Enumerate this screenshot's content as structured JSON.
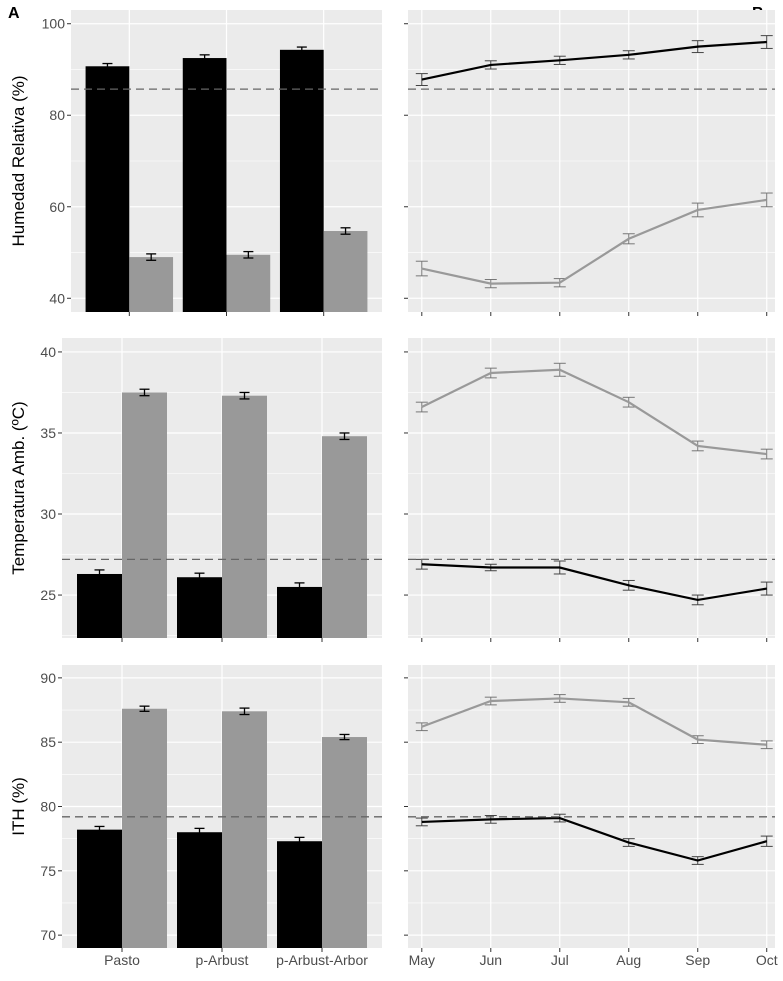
{
  "panel_labels": [
    "A",
    "B"
  ],
  "colors": {
    "black_series": "#000000",
    "gray_series": "#999999",
    "panel_bg": "#ebebeb",
    "grid": "#ffffff",
    "dashed": "#666666"
  },
  "chart_data": [
    {
      "type": "bar",
      "panel": "A",
      "row": 1,
      "ylabel": "Humedad Relativa (%)",
      "ylim": [
        37,
        103
      ],
      "yticks": [
        40,
        60,
        80,
        100
      ],
      "categories": [
        "Pasto",
        "p-Arbust",
        "p-Arbust-Arbor"
      ],
      "series": [
        {
          "name": "black",
          "values": [
            90.7,
            92.5,
            94.3
          ],
          "err": [
            0.6,
            0.7,
            0.6
          ]
        },
        {
          "name": "gray",
          "values": [
            49.0,
            49.5,
            54.7
          ],
          "err": [
            0.7,
            0.7,
            0.7
          ]
        }
      ],
      "reference_line": 85.7
    },
    {
      "type": "line",
      "panel": "B",
      "row": 1,
      "ylim": [
        37,
        103
      ],
      "yticks": [
        40,
        60,
        80,
        100
      ],
      "x": [
        "May",
        "Jun",
        "Jul",
        "Aug",
        "Sep",
        "Oct"
      ],
      "series": [
        {
          "name": "black",
          "values": [
            87.8,
            91.0,
            92.0,
            93.2,
            95.0,
            96.0
          ],
          "err": [
            1.3,
            0.9,
            0.9,
            0.9,
            1.3,
            1.4
          ]
        },
        {
          "name": "gray",
          "values": [
            46.5,
            43.2,
            43.4,
            53.0,
            59.3,
            61.5
          ],
          "err": [
            1.6,
            0.9,
            0.9,
            1.1,
            1.5,
            1.5
          ]
        }
      ],
      "reference_line": 85.7
    },
    {
      "type": "bar",
      "panel": "A",
      "row": 2,
      "ylabel": "Temperatura Amb. (ºC)",
      "ylim": [
        22.35,
        40.86
      ],
      "yticks": [
        25,
        30,
        35,
        40
      ],
      "categories": [
        "Pasto",
        "p-Arbust",
        "p-Arbust-Arbor"
      ],
      "series": [
        {
          "name": "black",
          "values": [
            26.3,
            26.1,
            25.5
          ],
          "err": [
            0.25,
            0.25,
            0.25
          ]
        },
        {
          "name": "gray",
          "values": [
            37.5,
            37.3,
            34.8
          ],
          "err": [
            0.2,
            0.2,
            0.2
          ]
        }
      ],
      "reference_line": 27.2
    },
    {
      "type": "line",
      "panel": "B",
      "row": 2,
      "ylim": [
        22.35,
        40.86
      ],
      "yticks": [
        25,
        30,
        35,
        40
      ],
      "x": [
        "May",
        "Jun",
        "Jul",
        "Aug",
        "Sep",
        "Oct"
      ],
      "series": [
        {
          "name": "gray",
          "values": [
            36.6,
            38.7,
            38.9,
            36.9,
            34.2,
            33.7
          ],
          "err": [
            0.3,
            0.3,
            0.4,
            0.3,
            0.3,
            0.3
          ]
        },
        {
          "name": "black",
          "values": [
            26.9,
            26.7,
            26.7,
            25.6,
            24.7,
            25.4
          ],
          "err": [
            0.3,
            0.2,
            0.4,
            0.3,
            0.3,
            0.4
          ]
        }
      ],
      "reference_line": 27.2
    },
    {
      "type": "bar",
      "panel": "A",
      "row": 3,
      "ylabel": "ITH (%)",
      "ylim": [
        69,
        91
      ],
      "yticks": [
        70,
        75,
        80,
        85,
        90
      ],
      "categories": [
        "Pasto",
        "p-Arbust",
        "p-Arbust-Arbor"
      ],
      "series": [
        {
          "name": "black",
          "values": [
            78.2,
            78.0,
            77.3
          ],
          "err": [
            0.25,
            0.3,
            0.3
          ]
        },
        {
          "name": "gray",
          "values": [
            87.6,
            87.4,
            85.4
          ],
          "err": [
            0.2,
            0.25,
            0.2
          ]
        }
      ],
      "reference_line": 79.2
    },
    {
      "type": "line",
      "panel": "B",
      "row": 3,
      "ylim": [
        69,
        91
      ],
      "yticks": [
        70,
        75,
        80,
        85,
        90
      ],
      "x": [
        "May",
        "Jun",
        "Jul",
        "Aug",
        "Sep",
        "Oct"
      ],
      "series": [
        {
          "name": "gray",
          "values": [
            86.2,
            88.2,
            88.4,
            88.1,
            85.2,
            84.8
          ],
          "err": [
            0.3,
            0.3,
            0.3,
            0.3,
            0.3,
            0.3
          ]
        },
        {
          "name": "black",
          "values": [
            78.8,
            79.0,
            79.1,
            77.2,
            75.8,
            77.3
          ],
          "err": [
            0.3,
            0.3,
            0.3,
            0.3,
            0.3,
            0.4
          ]
        }
      ],
      "reference_line": 79.2
    }
  ]
}
